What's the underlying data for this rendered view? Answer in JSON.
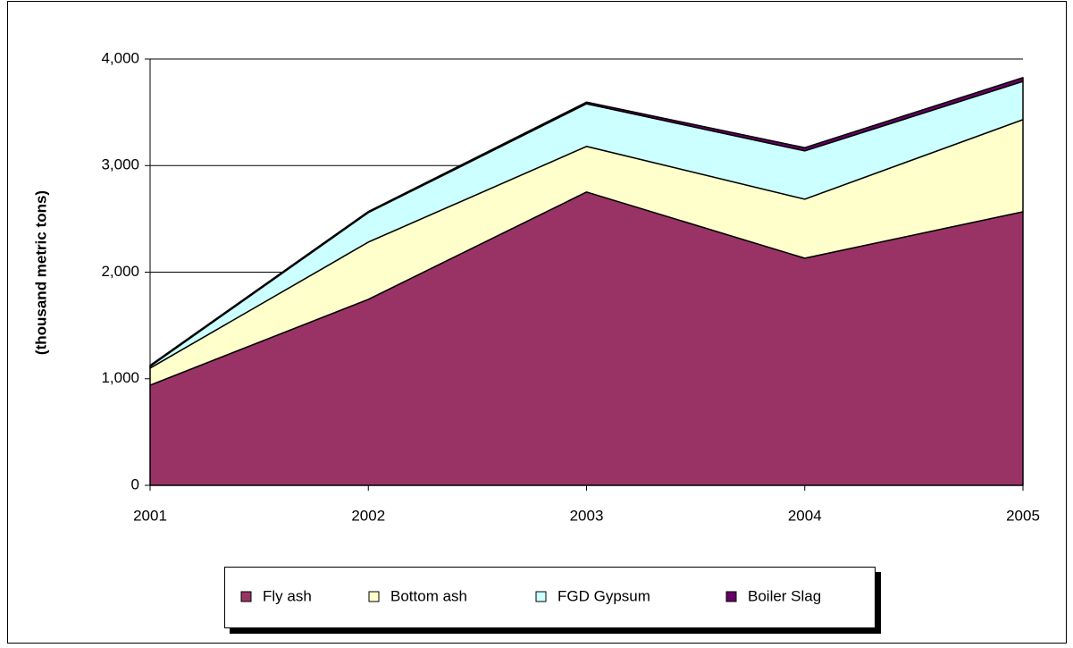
{
  "chart_data": {
    "type": "stacked_area",
    "y_label": "(thousand metric tons)",
    "categories": [
      "2001",
      "2002",
      "2003",
      "2004",
      "2005"
    ],
    "series": [
      {
        "name": "Fly ash",
        "color": "#993366",
        "values": [
          940,
          1745,
          2752,
          2131,
          2567
        ]
      },
      {
        "name": "Bottom ash",
        "color": "#ffffcc",
        "values": [
          160,
          537,
          428,
          554,
          864
        ]
      },
      {
        "name": "FGD Gypsum",
        "color": "#ccffff",
        "values": [
          16,
          277,
          400,
          453,
          359
        ]
      },
      {
        "name": "Boiler Slag",
        "color": "#660066",
        "values": [
          10,
          10,
          15,
          30,
          35
        ]
      }
    ],
    "ylim": [
      0,
      4000
    ],
    "yticks": [
      0,
      {
        "value": 1000,
        "label": "1,000"
      },
      {
        "value": 2000,
        "label": "2,000"
      },
      {
        "value": 3000,
        "label": "3,000"
      },
      {
        "value": 4000,
        "label": "4,000"
      }
    ],
    "grid": true
  }
}
